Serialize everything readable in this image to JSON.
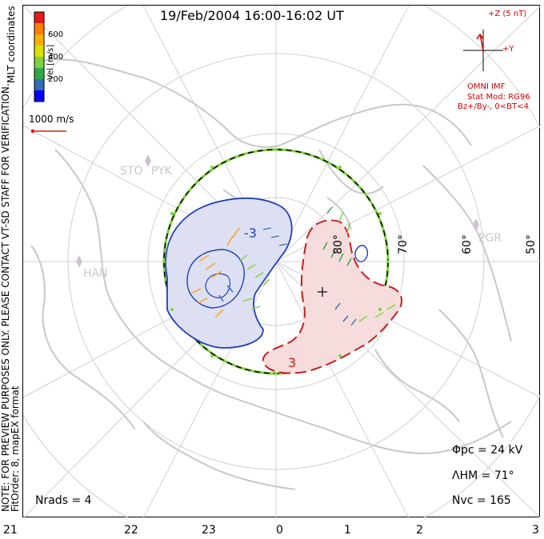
{
  "title": "19/Feb/2004 16:00-16:02 UT",
  "side_note": "NOTE: FOR PREVIEW PURPOSES ONLY. PLEASE CONTACT VT-SD STAFF FOR VERIFICATION.",
  "side_note2": "FitOrder: 8, mapEX format",
  "mlt_coords_label": "MLT coordinates",
  "color_scale": {
    "label": "Vel [m/s]",
    "ticks": [
      "600",
      "400",
      "200"
    ],
    "colors": [
      "#e41a1c",
      "#ff7f00",
      "#ffb000",
      "#d8e000",
      "#7fd13f",
      "#2ea84a",
      "#2f6fb0",
      "#0000ff"
    ]
  },
  "reference_vector_label": "1000 m/s",
  "imf": {
    "z_label": "+Z (5 nT)",
    "y_label": "+Y",
    "source_label": "OMNI IMF",
    "model_label": "Stat Mod: RG96",
    "conditions_label": "Bz+/By-, 0<BT<4"
  },
  "stats": {
    "phi_pc": "Φpc = 24 kV",
    "lambda_hm": "ΛHM = 71°",
    "n_vc": "Nvc = 165"
  },
  "nrads": "Nrads = 4",
  "mlt_labels": [
    "21",
    "22",
    "23",
    "0",
    "1",
    "2",
    "3"
  ],
  "lat_labels": [
    "80°",
    "70°",
    "60°",
    "50°"
  ],
  "stations": [
    "STO",
    "PYK",
    "HAN",
    "PGR"
  ],
  "contour_labels": [
    "-3",
    "3"
  ]
}
